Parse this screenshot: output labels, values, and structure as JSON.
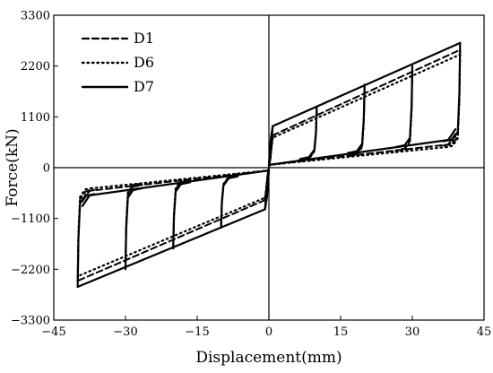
{
  "chart_data": {
    "type": "line",
    "title": "",
    "xlabel": "Displacement(mm)",
    "ylabel": "Force(kN)",
    "xlim": [
      -45,
      45
    ],
    "ylim": [
      -3300,
      3300
    ],
    "xticks": [
      -45,
      -30,
      -15,
      0,
      15,
      30,
      45
    ],
    "yticks": [
      -3300,
      -2200,
      -1100,
      0,
      1100,
      2200,
      3300
    ],
    "xtick_labels": [
      "−45",
      "−30",
      "−15",
      "0",
      "15",
      "30",
      "45"
    ],
    "ytick_labels": [
      "−3300",
      "−2200",
      "−1100",
      "0",
      "1100",
      "2200",
      "3300"
    ],
    "grid": false,
    "zero_lines": true,
    "legend_position": "top-left",
    "series": [
      {
        "name": "D1",
        "style": "dashed",
        "amplitudes": [
          10,
          20,
          30,
          40
        ],
        "peak_force_pos": [
          1250,
          1750,
          2150,
          2550
        ],
        "peak_force_neg": [
          -1250,
          -1700,
          -2100,
          -2450
        ],
        "yield_force": 700,
        "return_force": 350
      },
      {
        "name": "D6",
        "style": "dotted",
        "amplitudes": [
          10,
          20,
          30,
          40
        ],
        "peak_force_pos": [
          1200,
          1700,
          2100,
          2450
        ],
        "peak_force_neg": [
          -1200,
          -1650,
          -2050,
          -2350
        ],
        "yield_force": 650,
        "return_force": 300
      },
      {
        "name": "D7",
        "style": "solid",
        "amplitudes": [
          10,
          20,
          30,
          40
        ],
        "peak_force_pos": [
          1300,
          1800,
          2200,
          2700
        ],
        "peak_force_neg": [
          -1300,
          -1750,
          -2200,
          -2580
        ],
        "yield_force": 900,
        "return_force": 450
      }
    ]
  },
  "colors": {
    "line": "#000000",
    "background": "#ffffff"
  }
}
